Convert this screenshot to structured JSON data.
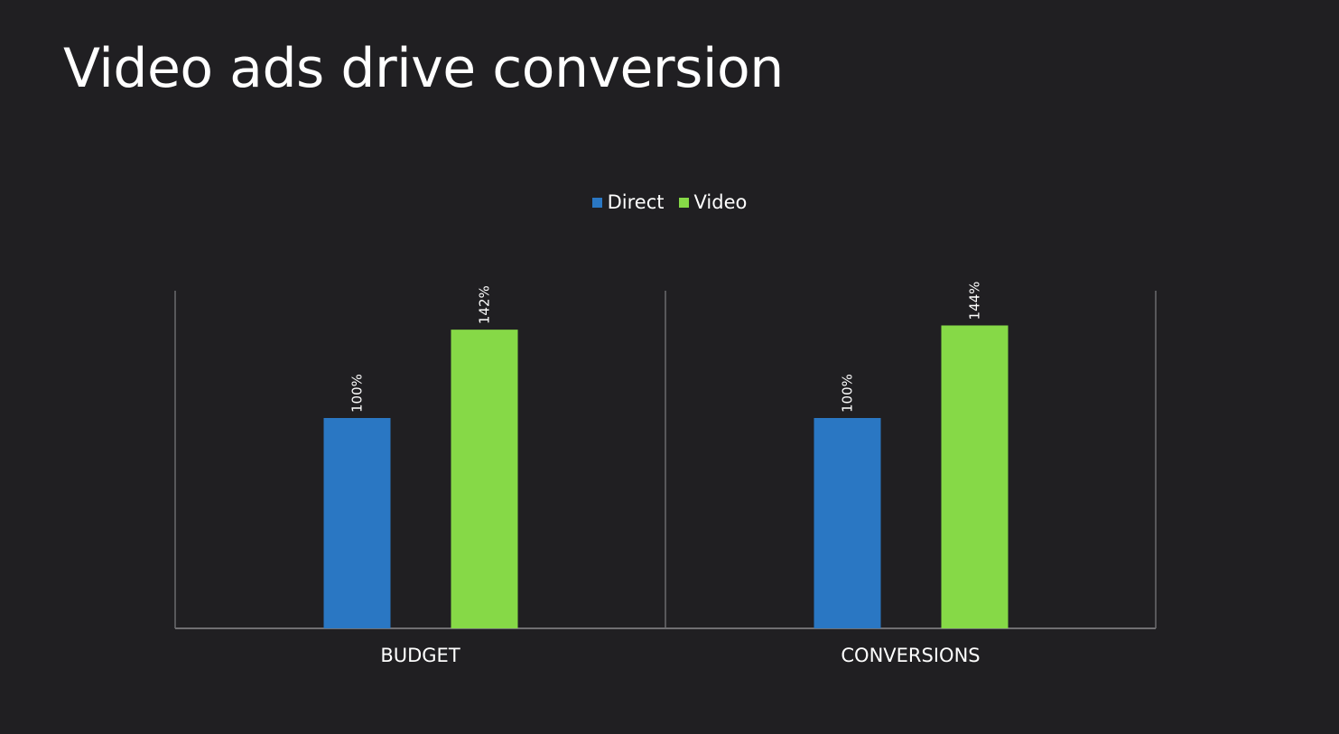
{
  "slide": {
    "title": "Video ads drive conversion"
  },
  "chart_data": {
    "type": "bar",
    "title": "",
    "categories": [
      "BUDGET",
      "CONVERSIONS"
    ],
    "series": [
      {
        "name": "Direct",
        "color": "#2a77c3",
        "values": [
          100,
          100
        ],
        "labels": [
          "100%",
          "100%"
        ]
      },
      {
        "name": "Video",
        "color": "#86d947",
        "values": [
          142,
          144
        ],
        "labels": [
          "142%",
          "144%"
        ]
      }
    ],
    "ylim": [
      0,
      160
    ],
    "legend": "top-center",
    "grid": false
  }
}
